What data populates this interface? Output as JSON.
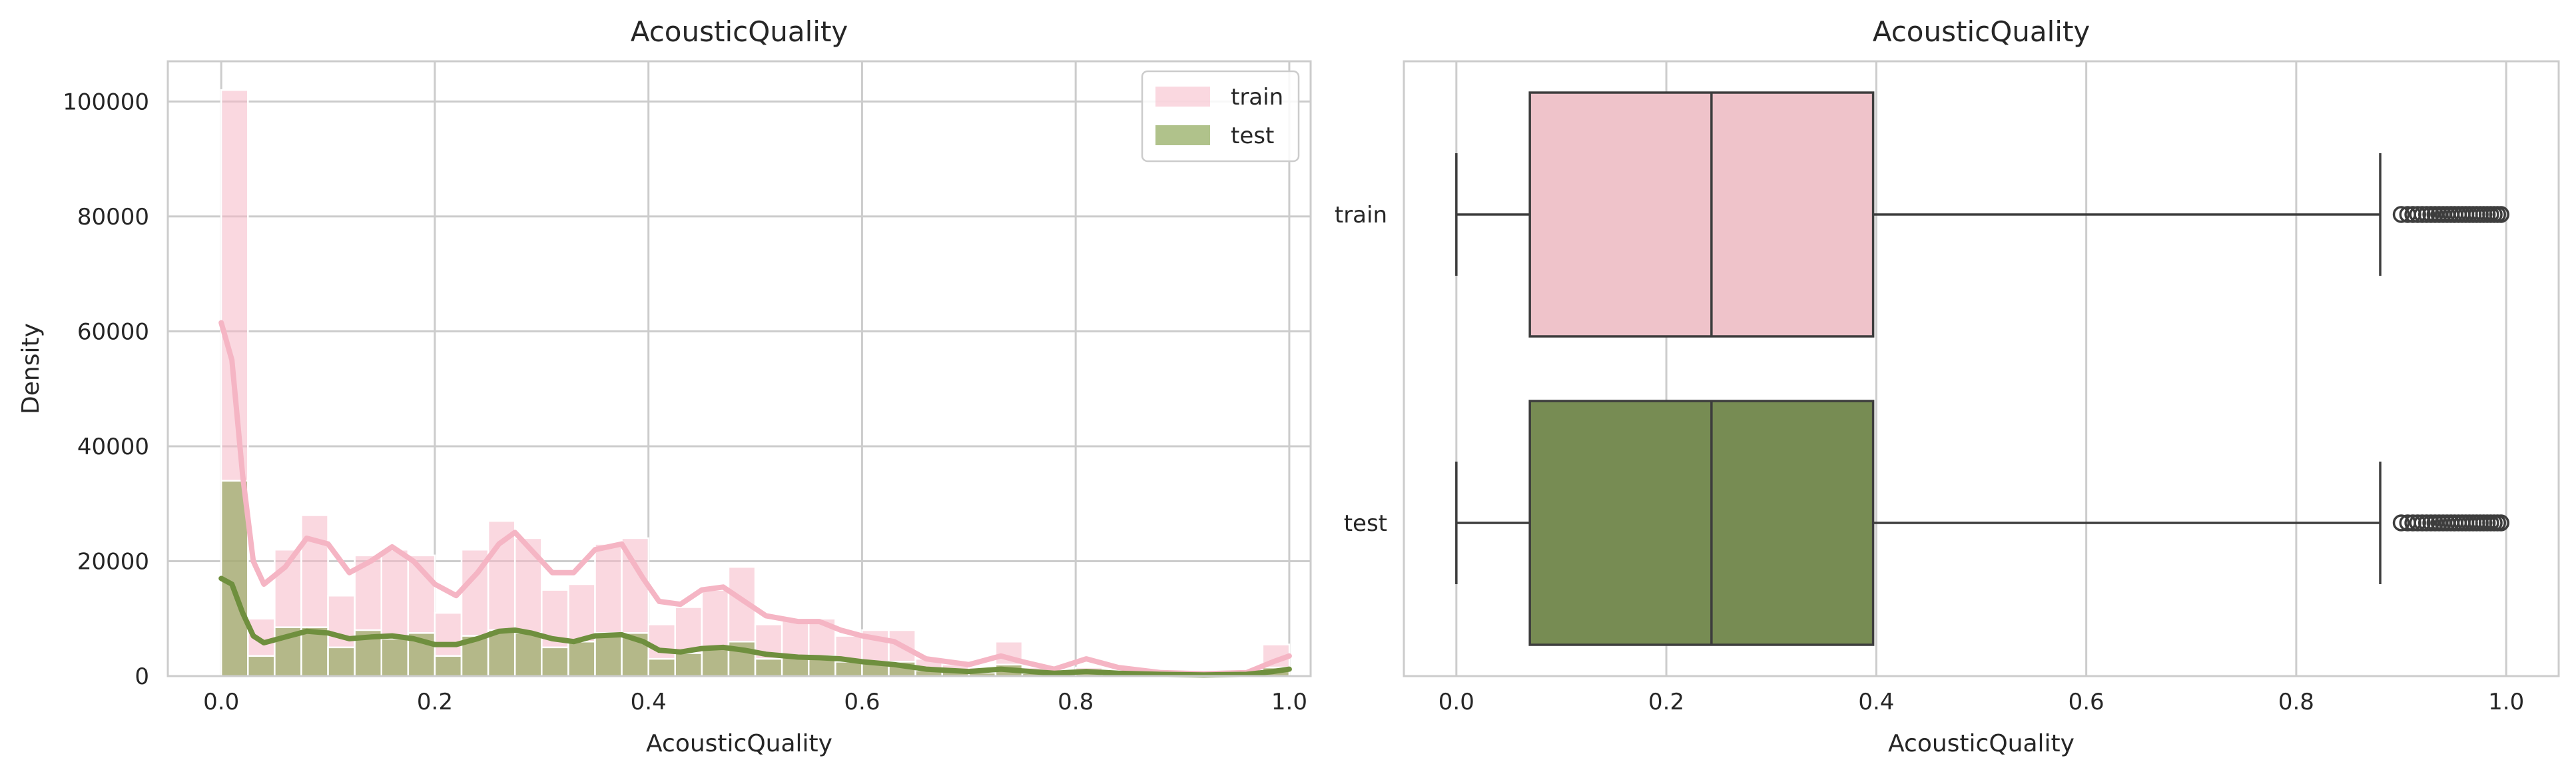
{
  "chart_data": [
    {
      "type": "bar",
      "subtype": "histogram_with_kde",
      "title": "AcousticQuality",
      "xlabel": "AcousticQuality",
      "ylabel": "Density",
      "xlim": [
        -0.05,
        1.02
      ],
      "ylim": [
        0,
        107000
      ],
      "xticks": [
        "0.0",
        "0.2",
        "0.4",
        "0.6",
        "0.8",
        "1.0"
      ],
      "yticks": [
        "0",
        "20000",
        "40000",
        "60000",
        "80000",
        "100000"
      ],
      "grid": true,
      "legend": {
        "position": "top-right",
        "entries": [
          "train",
          "test"
        ]
      },
      "bin_width": 0.025,
      "bin_starts": [
        0.0,
        0.025,
        0.05,
        0.075,
        0.1,
        0.125,
        0.15,
        0.175,
        0.2,
        0.225,
        0.25,
        0.275,
        0.3,
        0.325,
        0.35,
        0.375,
        0.4,
        0.425,
        0.45,
        0.475,
        0.5,
        0.525,
        0.55,
        0.575,
        0.6,
        0.625,
        0.65,
        0.675,
        0.7,
        0.725,
        0.75,
        0.775,
        0.8,
        0.825,
        0.85,
        0.875,
        0.9,
        0.925,
        0.95,
        0.975
      ],
      "series": [
        {
          "name": "train",
          "color": "#f5b8c6",
          "values": [
            102000,
            10000,
            22000,
            28000,
            14000,
            21000,
            22000,
            21000,
            11000,
            22000,
            27000,
            24000,
            15000,
            16000,
            23000,
            24000,
            9000,
            12000,
            15000,
            19000,
            9000,
            10000,
            10000,
            7000,
            8000,
            8000,
            3000,
            2000,
            1500,
            6000,
            1500,
            1000,
            1500,
            800,
            800,
            500,
            500,
            500,
            500,
            5500
          ],
          "kde": [
            [
              0.0,
              61500
            ],
            [
              0.01,
              55000
            ],
            [
              0.02,
              35000
            ],
            [
              0.03,
              20000
            ],
            [
              0.04,
              16000
            ],
            [
              0.06,
              19000
            ],
            [
              0.08,
              24000
            ],
            [
              0.1,
              23000
            ],
            [
              0.12,
              18000
            ],
            [
              0.14,
              20000
            ],
            [
              0.16,
              22500
            ],
            [
              0.18,
              20000
            ],
            [
              0.2,
              16000
            ],
            [
              0.22,
              14000
            ],
            [
              0.24,
              18000
            ],
            [
              0.26,
              23000
            ],
            [
              0.275,
              25000
            ],
            [
              0.29,
              22000
            ],
            [
              0.31,
              18000
            ],
            [
              0.33,
              18000
            ],
            [
              0.35,
              22000
            ],
            [
              0.375,
              23000
            ],
            [
              0.395,
              17000
            ],
            [
              0.41,
              13000
            ],
            [
              0.43,
              12500
            ],
            [
              0.45,
              15000
            ],
            [
              0.47,
              15500
            ],
            [
              0.49,
              13000
            ],
            [
              0.51,
              10500
            ],
            [
              0.54,
              9500
            ],
            [
              0.56,
              9500
            ],
            [
              0.58,
              8000
            ],
            [
              0.6,
              7000
            ],
            [
              0.63,
              6000
            ],
            [
              0.66,
              3000
            ],
            [
              0.7,
              2000
            ],
            [
              0.73,
              3500
            ],
            [
              0.75,
              2500
            ],
            [
              0.78,
              1200
            ],
            [
              0.81,
              3000
            ],
            [
              0.84,
              1500
            ],
            [
              0.88,
              600
            ],
            [
              0.92,
              400
            ],
            [
              0.96,
              600
            ],
            [
              0.985,
              2500
            ],
            [
              1.0,
              3500
            ]
          ]
        },
        {
          "name": "test",
          "color": "#8fa85a",
          "values": [
            34000,
            3500,
            8500,
            8500,
            5000,
            8000,
            6500,
            7500,
            3500,
            7000,
            8000,
            7500,
            5000,
            6000,
            7500,
            7500,
            3000,
            4000,
            5000,
            6000,
            3000,
            3500,
            3500,
            2500,
            2500,
            2500,
            1000,
            800,
            600,
            2000,
            500,
            400,
            500,
            300,
            300,
            200,
            200,
            200,
            200,
            1500
          ],
          "kde": [
            [
              0.0,
              17000
            ],
            [
              0.01,
              16000
            ],
            [
              0.02,
              11000
            ],
            [
              0.03,
              7000
            ],
            [
              0.04,
              5800
            ],
            [
              0.06,
              6800
            ],
            [
              0.08,
              7800
            ],
            [
              0.1,
              7500
            ],
            [
              0.12,
              6500
            ],
            [
              0.14,
              6800
            ],
            [
              0.16,
              7000
            ],
            [
              0.18,
              6500
            ],
            [
              0.2,
              5500
            ],
            [
              0.22,
              5500
            ],
            [
              0.24,
              6500
            ],
            [
              0.26,
              7800
            ],
            [
              0.275,
              8000
            ],
            [
              0.29,
              7500
            ],
            [
              0.31,
              6500
            ],
            [
              0.33,
              6000
            ],
            [
              0.35,
              7000
            ],
            [
              0.375,
              7200
            ],
            [
              0.395,
              6000
            ],
            [
              0.41,
              4500
            ],
            [
              0.43,
              4200
            ],
            [
              0.45,
              4800
            ],
            [
              0.47,
              5000
            ],
            [
              0.49,
              4500
            ],
            [
              0.51,
              3800
            ],
            [
              0.54,
              3300
            ],
            [
              0.56,
              3200
            ],
            [
              0.58,
              3000
            ],
            [
              0.6,
              2500
            ],
            [
              0.63,
              2000
            ],
            [
              0.66,
              1200
            ],
            [
              0.7,
              800
            ],
            [
              0.73,
              1200
            ],
            [
              0.75,
              900
            ],
            [
              0.78,
              500
            ],
            [
              0.81,
              800
            ],
            [
              0.84,
              500
            ],
            [
              0.88,
              300
            ],
            [
              0.92,
              200
            ],
            [
              0.96,
              300
            ],
            [
              0.985,
              800
            ],
            [
              1.0,
              1200
            ]
          ]
        }
      ]
    },
    {
      "type": "boxplot",
      "title": "AcousticQuality",
      "xlabel": "AcousticQuality",
      "ylabel": "",
      "xlim": [
        -0.05,
        1.05
      ],
      "xticks": [
        "0.0",
        "0.2",
        "0.4",
        "0.6",
        "0.8",
        "1.0"
      ],
      "grid": true,
      "categories": [
        "train",
        "test"
      ],
      "series": [
        {
          "name": "train",
          "color": "#efc3ca",
          "whisker_low": 0.0,
          "q1": 0.07,
          "median": 0.243,
          "q3": 0.397,
          "whisker_high": 0.88,
          "outliers_range": [
            0.9,
            0.995
          ]
        },
        {
          "name": "test",
          "color": "#778c53",
          "whisker_low": 0.0,
          "q1": 0.07,
          "median": 0.243,
          "q3": 0.397,
          "whisker_high": 0.88,
          "outliers_range": [
            0.9,
            0.995
          ]
        }
      ]
    }
  ]
}
